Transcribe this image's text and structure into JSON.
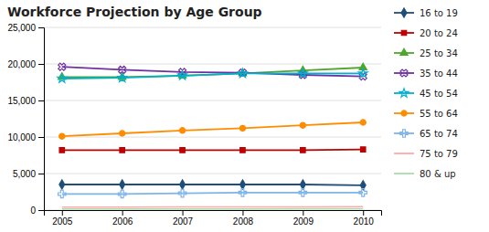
{
  "chart_data": {
    "type": "line",
    "title": "Workforce Projection by Age Group",
    "x": [
      2005,
      2006,
      2007,
      2008,
      2009,
      2010
    ],
    "xlim": [
      2004.7,
      2010.3
    ],
    "xticks": [
      2005,
      2006,
      2007,
      2008,
      2009,
      2010
    ],
    "ylim": [
      0,
      25000
    ],
    "yticks": [
      0,
      {
        "value": 5000,
        "label": "5,000"
      },
      {
        "value": 10000,
        "label": "10,000"
      },
      {
        "value": 15000,
        "label": "15,000"
      },
      {
        "value": 20000,
        "label": "20,000"
      },
      {
        "value": 25000,
        "label": "25,000"
      }
    ],
    "grid": true,
    "legend": "right",
    "series": [
      {
        "name": "16 to 19",
        "color": "#1F4E79",
        "marker": "diamond",
        "values": [
          3500,
          3500,
          3500,
          3500,
          3500,
          3400
        ]
      },
      {
        "name": "20 to 24",
        "color": "#C00000",
        "marker": "square",
        "values": [
          8200,
          8200,
          8200,
          8200,
          8200,
          8300
        ]
      },
      {
        "name": "25 to 34",
        "color": "#4EA72A",
        "marker": "triangle",
        "values": [
          18200,
          18200,
          18400,
          18700,
          19100,
          19500
        ]
      },
      {
        "name": "35 to 44",
        "color": "#7030A0",
        "marker": "x",
        "values": [
          19600,
          19200,
          18900,
          18800,
          18500,
          18300
        ]
      },
      {
        "name": "45 to 54",
        "color": "#00B0D0",
        "marker": "star",
        "values": [
          18000,
          18100,
          18400,
          18700,
          18700,
          18700
        ]
      },
      {
        "name": "55 to 64",
        "color": "#FF8C00",
        "marker": "circle",
        "values": [
          10100,
          10500,
          10900,
          11200,
          11600,
          12000
        ]
      },
      {
        "name": "65 to 74",
        "color": "#7EB4EA",
        "marker": "plus",
        "values": [
          2200,
          2200,
          2300,
          2400,
          2400,
          2400
        ]
      },
      {
        "name": "75 to 79",
        "color": "#FFAAAA",
        "values": [
          400,
          420,
          430,
          440,
          450,
          460
        ]
      },
      {
        "name": "80 & up",
        "color": "#AADDAA",
        "values": [
          150,
          160,
          165,
          170,
          175,
          180
        ]
      }
    ]
  }
}
